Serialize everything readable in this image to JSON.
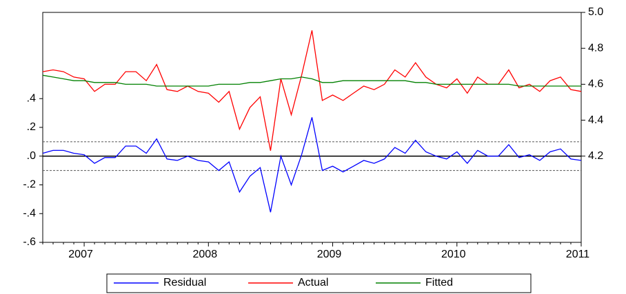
{
  "chart_data": {
    "type": "line",
    "categories": [
      null,
      null,
      null,
      null,
      "2007",
      null,
      null,
      null,
      null,
      null,
      null,
      null,
      null,
      null,
      null,
      null,
      "2008",
      null,
      null,
      null,
      null,
      null,
      null,
      null,
      null,
      null,
      null,
      null,
      "2009",
      null,
      null,
      null,
      null,
      null,
      null,
      null,
      null,
      null,
      null,
      null,
      "2010",
      null,
      null,
      null,
      null,
      null,
      null,
      null,
      null,
      null,
      null,
      null,
      "2011"
    ],
    "series": [
      {
        "name": "Residual",
        "color": "#0000ff",
        "axis": "y",
        "values": [
          0.02,
          0.04,
          0.04,
          0.02,
          0.01,
          -0.05,
          -0.01,
          -0.01,
          0.07,
          0.07,
          0.02,
          0.12,
          -0.02,
          -0.03,
          0.0,
          -0.03,
          -0.04,
          -0.1,
          -0.04,
          -0.25,
          -0.14,
          -0.08,
          -0.39,
          0.0,
          -0.2,
          0.01,
          0.27,
          -0.1,
          -0.07,
          -0.11,
          -0.07,
          -0.03,
          -0.05,
          -0.02,
          0.06,
          0.02,
          0.11,
          0.03,
          0.0,
          -0.02,
          0.03,
          -0.05,
          0.04,
          0.0,
          0.0,
          0.08,
          -0.01,
          0.01,
          -0.03,
          0.03,
          0.05,
          -0.02,
          -0.03
        ]
      },
      {
        "name": "Actual",
        "color": "#ff0000",
        "axis": "y2",
        "values": [
          4.67,
          4.68,
          4.67,
          4.64,
          4.63,
          4.56,
          4.6,
          4.6,
          4.67,
          4.67,
          4.62,
          4.71,
          4.57,
          4.56,
          4.59,
          4.56,
          4.55,
          4.5,
          4.56,
          4.35,
          4.47,
          4.53,
          4.23,
          4.63,
          4.43,
          4.65,
          4.9,
          4.51,
          4.54,
          4.51,
          4.55,
          4.59,
          4.57,
          4.6,
          4.68,
          4.64,
          4.72,
          4.64,
          4.6,
          4.58,
          4.63,
          4.55,
          4.64,
          4.6,
          4.6,
          4.68,
          4.58,
          4.6,
          4.56,
          4.62,
          4.64,
          4.57,
          4.56
        ]
      },
      {
        "name": "Fitted",
        "color": "#008000",
        "axis": "y2",
        "values": [
          4.65,
          4.64,
          4.63,
          4.62,
          4.62,
          4.61,
          4.61,
          4.61,
          4.6,
          4.6,
          4.6,
          4.59,
          4.59,
          4.59,
          4.59,
          4.59,
          4.59,
          4.6,
          4.6,
          4.6,
          4.61,
          4.61,
          4.62,
          4.63,
          4.63,
          4.64,
          4.63,
          4.61,
          4.61,
          4.62,
          4.62,
          4.62,
          4.62,
          4.62,
          4.62,
          4.62,
          4.61,
          4.61,
          4.6,
          4.6,
          4.6,
          4.6,
          4.6,
          4.6,
          4.6,
          4.6,
          4.59,
          4.59,
          4.59,
          4.59,
          4.59,
          4.59,
          4.59
        ]
      }
    ],
    "ylim": [
      -0.6,
      1.0
    ],
    "yticks": [
      {
        "value": 0.4,
        "label": ".4"
      },
      {
        "value": 0.2,
        "label": ".2"
      },
      {
        "value": 0.0,
        "label": ".0"
      },
      {
        "value": -0.2,
        "label": "-.2"
      },
      {
        "value": -0.4,
        "label": "-.4"
      },
      {
        "value": -0.6,
        "label": "-.6"
      }
    ],
    "y2lim": [
      3.72,
      5.0
    ],
    "y2ticks": [
      {
        "value": 5.0,
        "label": "5.0"
      },
      {
        "value": 4.8,
        "label": "4.8"
      },
      {
        "value": 4.6,
        "label": "4.6"
      },
      {
        "value": 4.4,
        "label": "4.4"
      },
      {
        "value": 4.2,
        "label": "4.2"
      }
    ],
    "ref_lines": [
      {
        "value": 0.1,
        "dashed": true
      },
      {
        "value": 0.0,
        "dashed": false
      },
      {
        "value": -0.1,
        "dashed": true
      }
    ],
    "grid": false,
    "legend": "bottom"
  }
}
